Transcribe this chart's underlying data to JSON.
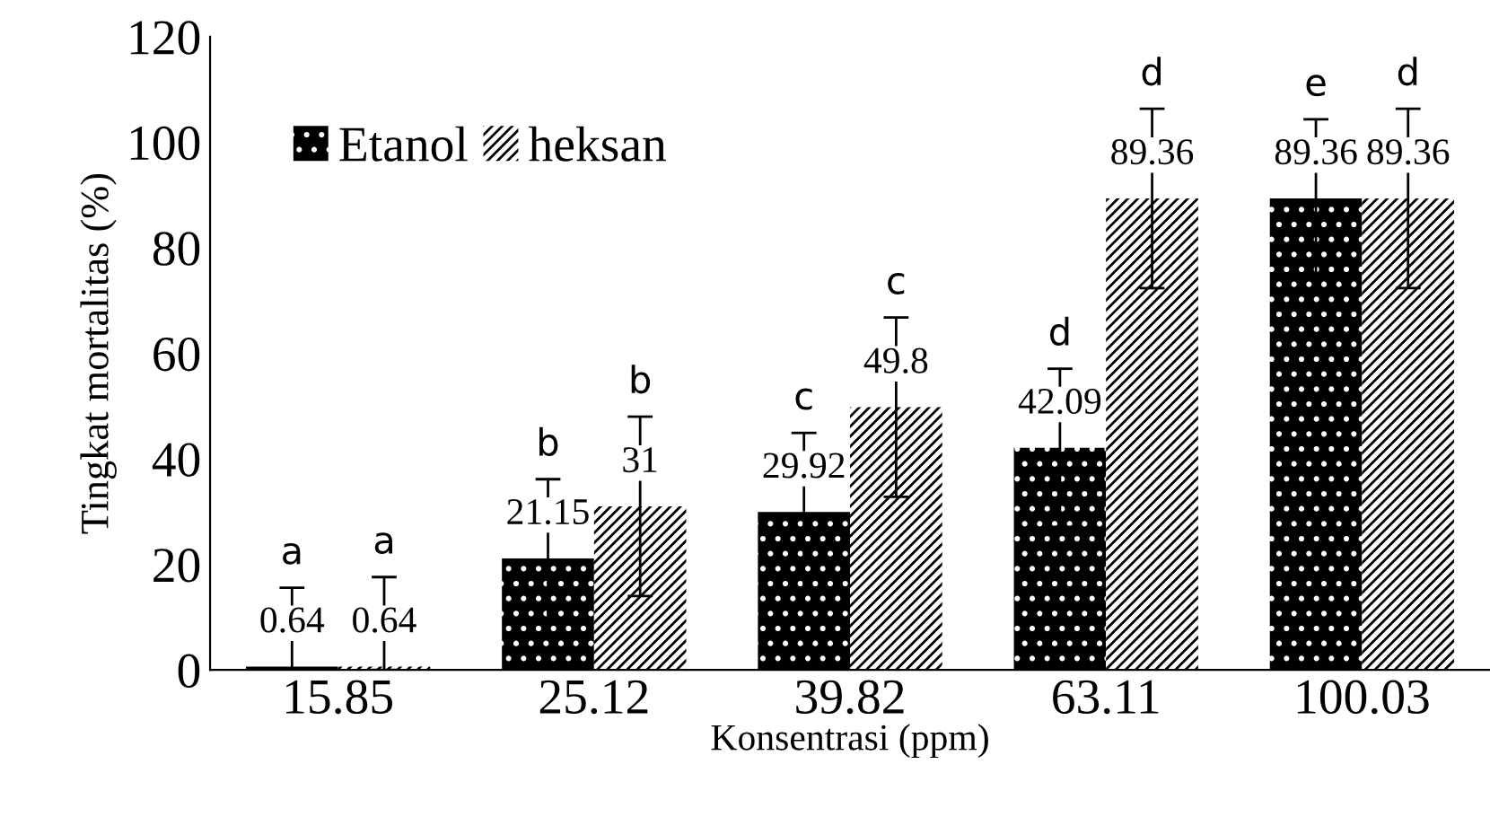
{
  "chart_data": {
    "type": "bar",
    "xlabel": "Konsentrasi (ppm)",
    "ylabel": "Tingkat mortalitas (%)",
    "categories": [
      "15.85",
      "25.12",
      "39.82",
      "63.11",
      "100.03"
    ],
    "series": [
      {
        "name": "Etanol",
        "color": "#000000",
        "values": [
          0.64,
          21.15,
          29.92,
          42.09,
          89.36
        ],
        "errors": [
          [
            0,
            15.6
          ],
          15,
          15,
          15,
          15
        ]
      },
      {
        "name": "heksan",
        "color": "#000000",
        "values": [
          0.64,
          31,
          49.8,
          89.36,
          89.36
        ],
        "errors": [
          [
            0,
            17.6
          ],
          17,
          17,
          17,
          17
        ]
      }
    ],
    "ylim": [
      0,
      120
    ],
    "yticks": [
      0,
      20,
      40,
      60,
      80,
      100,
      120
    ],
    "data_labels": true,
    "legend": "top left",
    "grid": false,
    "annotations": [
      "a",
      "a",
      "b",
      "b",
      "c",
      "c",
      "d",
      "d",
      "e",
      "d"
    ]
  }
}
